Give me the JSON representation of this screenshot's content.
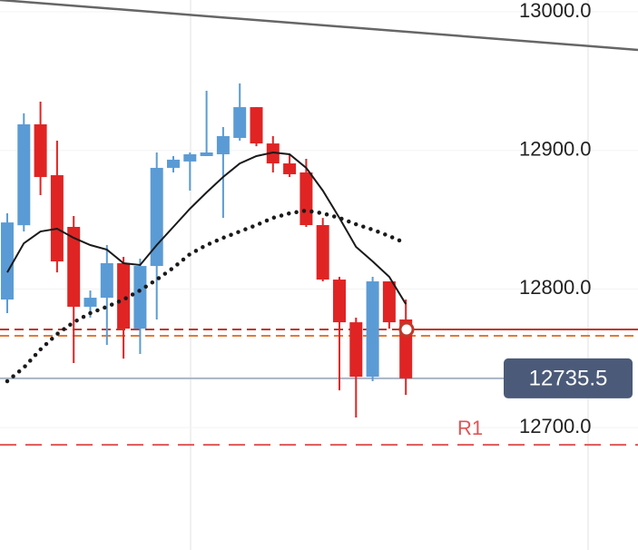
{
  "chart_data": {
    "type": "candlestick",
    "ylim": [
      12611.7,
      13008.5
    ],
    "yticks": [
      {
        "value": 13000,
        "label": "13000.0"
      },
      {
        "value": 12900,
        "label": "12900.0"
      },
      {
        "value": 12800,
        "label": "12800.0"
      },
      {
        "value": 12700,
        "label": "12700.0"
      }
    ],
    "grid": true,
    "up_color": "#5b9bd5",
    "down_color": "#e02424",
    "open": [
      12792.4,
      12846.0,
      12918.8,
      12882.1,
      12844.8,
      12787.2,
      12793.7,
      12818.6,
      12771.4,
      12816.6,
      12887.4,
      12892.0,
      12895.9,
      12897.2,
      12909.0,
      12931.2,
      12905.0,
      12890.6,
      12884.1,
      12846.1,
      12806.8,
      12776.0,
      12736.7,
      12805.5,
      12778.0
    ],
    "high": [
      12854.6,
      12926.7,
      12935.2,
      12907.0,
      12852.7,
      12798.9,
      12831.7,
      12823.2,
      12821.9,
      12898.5,
      12895.9,
      12898.5,
      12943.0,
      12916.8,
      12948.3,
      12931.2,
      12910.3,
      12897.2,
      12893.9,
      12851.3,
      12808.8,
      12779.3,
      12808.8,
      12805.5,
      12792.4
    ],
    "low": [
      12782.6,
      12841.5,
      12867.7,
      12812.0,
      12746.6,
      12779.3,
      12759.7,
      12749.8,
      12753.1,
      12778.0,
      12884.1,
      12871.0,
      12895.9,
      12851.3,
      12907.0,
      12903.0,
      12884.1,
      12880.8,
      12844.8,
      12805.5,
      12726.9,
      12707.3,
      12733.5,
      12771.4,
      12723.6
    ],
    "close": [
      12848.0,
      12918.8,
      12880.8,
      12819.9,
      12787.2,
      12793.7,
      12818.6,
      12771.4,
      12816.6,
      12887.4,
      12893.3,
      12897.2,
      12898.5,
      12910.3,
      12931.2,
      12905.0,
      12890.6,
      12882.8,
      12846.1,
      12806.8,
      12776.0,
      12736.7,
      12805.5,
      12776.0,
      12735.5
    ],
    "lines": [
      {
        "color": "#1a1a1a",
        "style": "solid",
        "values": [
          12812.0,
          12833.0,
          12841.5,
          12843.5,
          12836.9,
          12831.7,
          12828.4,
          12818.6,
          12817.3,
          12831.7,
          12844.8,
          12857.9,
          12869.7,
          12880.8,
          12890.6,
          12895.9,
          12898.5,
          12897.2,
          12887.4,
          12871.0,
          12851.3,
          12830.4,
          12819.9,
          12808.8,
          12789.1
        ]
      },
      {
        "color": "#1a1a1a",
        "style": "dotted",
        "values": [
          12733.5,
          12743.3,
          12756.4,
          12767.5,
          12776.0,
          12782.6,
          12787.2,
          12792.4,
          12799.0,
          12806.8,
          12815.3,
          12825.2,
          12831.7,
          12836.9,
          12841.5,
          12846.1,
          12851.3,
          12854.6,
          12856.6,
          12854.6,
          12851.3,
          12846.7,
          12842.8,
          12838.2,
          12833.0
        ]
      }
    ],
    "trendline": [
      13008.5,
      12972.5
    ],
    "levels": [
      {
        "value": 12770.8,
        "color": "#c0392b",
        "style": "dashed-solid"
      },
      {
        "value": 12766.2,
        "color": "#e07b39",
        "style": "dashed"
      },
      {
        "value": 12687.6,
        "color": "#e05555",
        "style": "dashed",
        "label": "R1"
      }
    ],
    "current_price": 12735.5,
    "price_badge_color": "#4a5a78"
  }
}
